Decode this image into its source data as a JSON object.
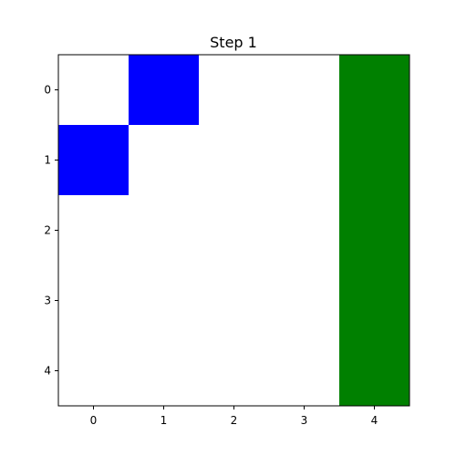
{
  "chart_data": {
    "type": "heatmap",
    "title": "Step 1",
    "xlabel": "",
    "ylabel": "",
    "x_ticks": [
      "0",
      "1",
      "2",
      "3",
      "4"
    ],
    "y_ticks": [
      "0",
      "1",
      "2",
      "3",
      "4"
    ],
    "rows": 5,
    "cols": 5,
    "grid": false,
    "colors": {
      "empty": "#ffffff",
      "blue": "#0000ff",
      "green": "#008000"
    },
    "cells": [
      {
        "row": 0,
        "col": 1,
        "color": "blue"
      },
      {
        "row": 1,
        "col": 0,
        "color": "blue"
      },
      {
        "row": 0,
        "col": 4,
        "color": "green"
      },
      {
        "row": 1,
        "col": 4,
        "color": "green"
      },
      {
        "row": 2,
        "col": 4,
        "color": "green"
      },
      {
        "row": 3,
        "col": 4,
        "color": "green"
      },
      {
        "row": 4,
        "col": 4,
        "color": "green"
      }
    ]
  }
}
